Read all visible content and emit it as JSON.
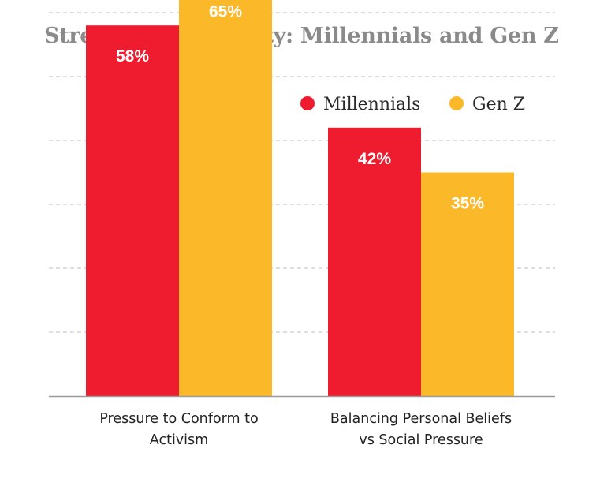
{
  "chart_data": {
    "type": "bar",
    "title": "Stress of Conformity: Millennials and Gen Z",
    "categories": [
      [
        "Pressure to Conform to",
        "Activism"
      ],
      [
        "Balancing Personal Beliefs",
        "vs Social Pressure"
      ]
    ],
    "series": [
      {
        "name": "Millennials",
        "values": [
          58,
          42
        ],
        "labels": [
          "58%",
          "42%"
        ],
        "color": "#ee1c2e"
      },
      {
        "name": "Gen Z",
        "values": [
          65,
          35
        ],
        "labels": [
          "65%",
          "35%"
        ],
        "color": "#fbb829"
      }
    ],
    "ylim": [
      0,
      70
    ],
    "grid": true,
    "legend": "top-right",
    "xlabel": "",
    "ylabel": ""
  }
}
